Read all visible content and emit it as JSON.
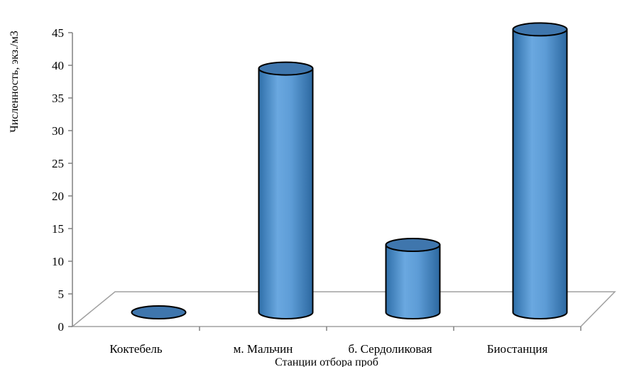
{
  "chart_data": {
    "type": "bar",
    "style": "3d-cylinder",
    "categories": [
      "Коктебель",
      "м. Мальчин",
      "б. Сердоликовая",
      "Биостанция"
    ],
    "values": [
      0,
      39.5,
      12.5,
      45.5
    ],
    "ylabel": "Численность, экз./м3",
    "xlabel": "Станции отбора проб",
    "ylim": [
      0,
      45
    ],
    "yticks": [
      0,
      5,
      10,
      15,
      20,
      25,
      30,
      35,
      40,
      45
    ],
    "gridlines": false,
    "legend": "none",
    "colors": {
      "bar_body": "#5b9bd5",
      "bar_body_dark": "#2e6fa8",
      "bar_top": "#3f76ad",
      "outline": "#000000",
      "axis": "#808080"
    }
  }
}
